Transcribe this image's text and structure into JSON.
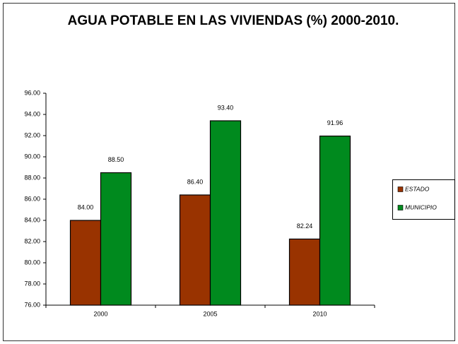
{
  "chart_data": {
    "type": "bar",
    "title": "AGUA POTABLE EN LAS VIVIENDAS (%) 2000-2010.",
    "categories": [
      "2000",
      "2005",
      "2010"
    ],
    "series": [
      {
        "name": "ESTADO",
        "color": "#993300",
        "values": [
          84.0,
          86.4,
          82.24
        ],
        "value_labels": [
          "84.00",
          "86.40",
          "82.24"
        ]
      },
      {
        "name": "MUNICIPIO",
        "color": "#008a1e",
        "values": [
          88.5,
          93.4,
          91.96
        ],
        "value_labels": [
          "88.50",
          "93.40",
          "91.96"
        ]
      }
    ],
    "ylim": [
      76,
      96
    ],
    "yticks": [
      {
        "value": 76,
        "label": "76.00"
      },
      {
        "value": 78,
        "label": "78.00"
      },
      {
        "value": 80,
        "label": "80.00"
      },
      {
        "value": 82,
        "label": "82.00"
      },
      {
        "value": 84,
        "label": "84.00"
      },
      {
        "value": 86,
        "label": "86.00"
      },
      {
        "value": 88,
        "label": "88.00"
      },
      {
        "value": 90,
        "label": "90.00"
      },
      {
        "value": 92,
        "label": "92.00"
      },
      {
        "value": 94,
        "label": "94.00"
      },
      {
        "value": 96,
        "label": "96.00"
      }
    ],
    "legend": "right"
  }
}
